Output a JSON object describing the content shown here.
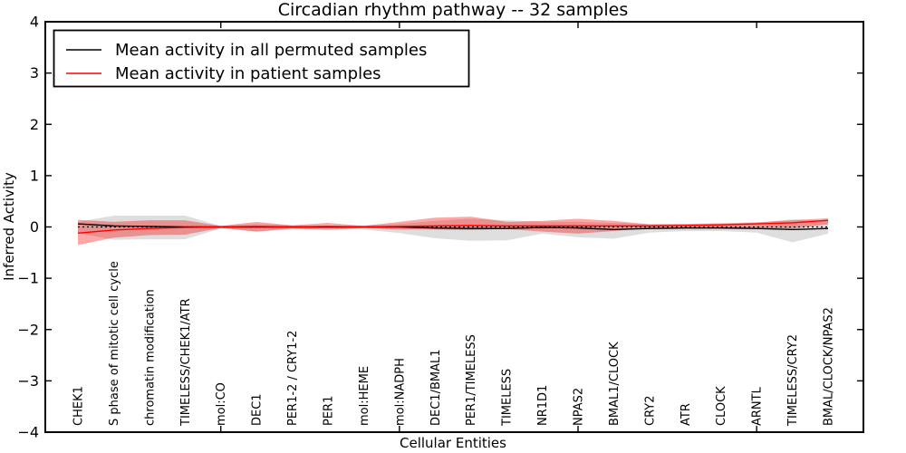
{
  "chart_data": {
    "type": "line",
    "title": "Circadian rhythm pathway -- 32 samples",
    "xlabel": "Cellular Entities",
    "ylabel": "Inferred Activity",
    "ylim": [
      -4,
      4
    ],
    "yticks": [
      -4,
      -3,
      -2,
      -1,
      0,
      1,
      2,
      3,
      4
    ],
    "xtick_indices": [
      4,
      9,
      14,
      19
    ],
    "grid": false,
    "legend_position": "upper left",
    "background_color": "#ffffff",
    "zero_line": {
      "show": true,
      "style": "dashed",
      "color": "#000000"
    },
    "categories": [
      "CHEK1",
      "S phase of mitotic cell cycle",
      "chromatin modification",
      "TIMELESS/CHEK1/ATR",
      "mol:CO",
      "DEC1",
      "PER1-2 / CRY1-2",
      "PER1",
      "mol:HEME",
      "mol:NADPH",
      "DEC1/BMAL1",
      "PER1/TIMELESS",
      "TIMELESS",
      "NR1D1",
      "NPAS2",
      "BMAL1/CLOCK",
      "CRY2",
      "ATR",
      "CLOCK",
      "ARNTL",
      "TIMELESS/CRY2",
      "BMAL/CLOCK/NPAS2"
    ],
    "series": [
      {
        "name": "Mean activity in all permuted samples",
        "color": "#000000",
        "values": [
          0.06,
          0.02,
          0.01,
          0.0,
          0.0,
          0.0,
          0.0,
          0.0,
          0.0,
          0.0,
          -0.02,
          -0.03,
          -0.03,
          -0.01,
          -0.02,
          -0.05,
          -0.03,
          -0.02,
          -0.02,
          -0.03,
          -0.05,
          -0.03
        ]
      },
      {
        "name": "Mean activity in patient samples",
        "color": "#ff0000",
        "values": [
          -0.12,
          -0.06,
          -0.03,
          -0.01,
          0.0,
          0.01,
          0.0,
          0.01,
          0.0,
          0.01,
          0.02,
          0.03,
          0.02,
          0.02,
          0.02,
          0.02,
          0.02,
          0.03,
          0.04,
          0.06,
          0.08,
          0.13
        ]
      }
    ],
    "bands": [
      {
        "name": "permuted-range",
        "color": "#000000",
        "opacity": 0.13,
        "upper": [
          0.1,
          0.22,
          0.22,
          0.22,
          0.02,
          0.06,
          0.03,
          0.02,
          0.03,
          0.06,
          0.12,
          0.16,
          0.13,
          0.1,
          0.1,
          0.08,
          0.06,
          0.05,
          0.06,
          0.08,
          0.15,
          0.12
        ],
        "lower": [
          -0.12,
          -0.25,
          -0.24,
          -0.24,
          -0.03,
          -0.09,
          -0.05,
          -0.03,
          -0.05,
          -0.12,
          -0.22,
          -0.27,
          -0.26,
          -0.13,
          -0.2,
          -0.23,
          -0.11,
          -0.08,
          -0.08,
          -0.11,
          -0.3,
          -0.13
        ]
      },
      {
        "name": "patient-range",
        "color": "#ff0000",
        "opacity": 0.35,
        "upper": [
          0.14,
          0.1,
          0.13,
          0.13,
          0.02,
          0.1,
          0.03,
          0.08,
          0.02,
          0.1,
          0.18,
          0.2,
          0.1,
          0.12,
          0.16,
          0.12,
          0.05,
          0.06,
          0.07,
          0.09,
          0.13,
          0.17
        ],
        "lower": [
          -0.35,
          -0.21,
          -0.16,
          -0.15,
          -0.02,
          -0.09,
          -0.03,
          -0.06,
          -0.02,
          -0.05,
          -0.05,
          -0.06,
          -0.04,
          -0.09,
          -0.13,
          -0.08,
          -0.02,
          -0.02,
          -0.02,
          -0.02,
          -0.03,
          0.05
        ]
      }
    ]
  }
}
